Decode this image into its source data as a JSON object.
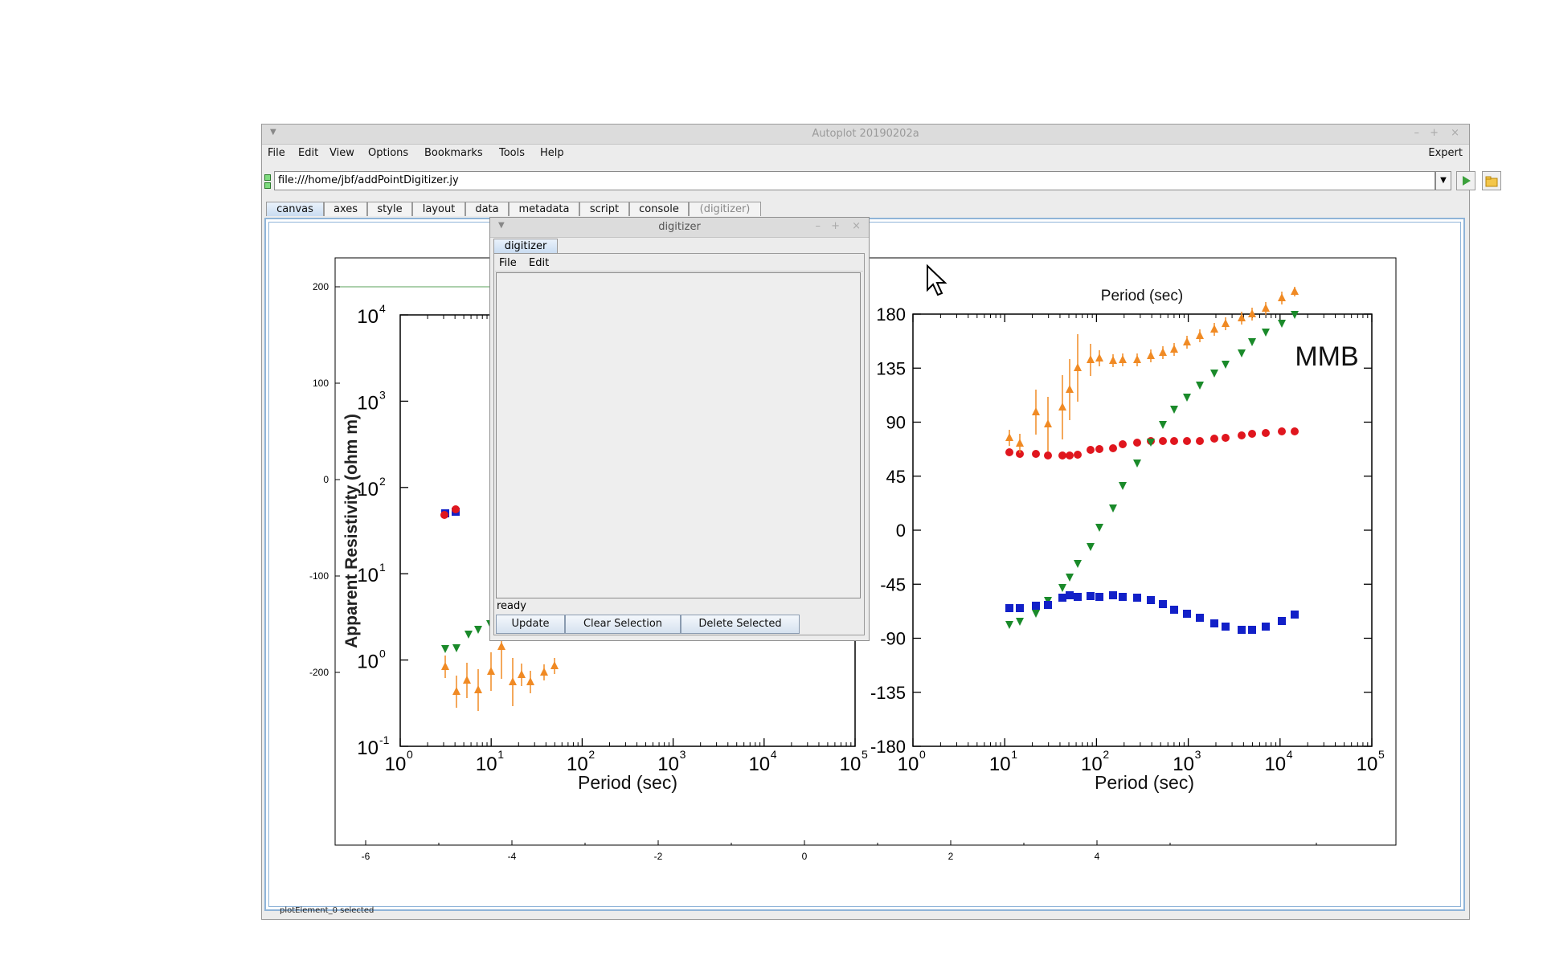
{
  "window": {
    "title": "Autoplot 20190202a",
    "minimize": "–",
    "maximize": "+",
    "close": "×"
  },
  "menubar": {
    "items": [
      "File",
      "Edit",
      "View",
      "Options",
      "Bookmarks",
      "Tools",
      "Help"
    ],
    "expert": "Expert"
  },
  "address": {
    "value": "file:///home/jbf/addPointDigitizer.jy",
    "dropdown_icon": "chevron-down-icon",
    "run_icon": "play-icon",
    "open_icon": "folder-icon"
  },
  "tabs": [
    {
      "label": "canvas",
      "selected": true
    },
    {
      "label": "axes"
    },
    {
      "label": "style"
    },
    {
      "label": "layout"
    },
    {
      "label": "data"
    },
    {
      "label": "metadata"
    },
    {
      "label": "script"
    },
    {
      "label": "console"
    },
    {
      "label": "(digitizer)",
      "disabled": true
    }
  ],
  "plot": {
    "y_ticks": [
      "200",
      "100",
      "0",
      "-100",
      "-200"
    ],
    "x_ticks": [
      "-6",
      "-4",
      "-2",
      "0",
      "2",
      "4"
    ],
    "left_panel": {
      "ylabel": "Apparent Resistivity (ohm m)",
      "xlabel": "Period (sec)",
      "y_tick_labels": [
        "10",
        "10",
        "10",
        "10",
        "10",
        "10"
      ],
      "y_tick_exps": [
        "4",
        "3",
        "2",
        "1",
        "0",
        "-1"
      ],
      "x_tick_labels": [
        "10",
        "10",
        "10",
        "10",
        "10",
        "10"
      ],
      "x_tick_exps": [
        "0",
        "1",
        "2",
        "3",
        "4",
        "5"
      ]
    },
    "right_panel": {
      "top_label": "Period (sec)",
      "station": "MMB",
      "xlabel": "Period (sec)",
      "y_tick_labels": [
        "180",
        "135",
        "90",
        "45",
        "0",
        "-45",
        "-90",
        "-135",
        "-180"
      ],
      "x_tick_labels": [
        "10",
        "10",
        "10",
        "10",
        "10",
        "10"
      ],
      "x_tick_exps": [
        "0",
        "1",
        "2",
        "3",
        "4",
        "5"
      ]
    },
    "colors": {
      "red": "#e0161e",
      "blue": "#1220c8",
      "green": "#1a8a2a",
      "orange": "#f08a24"
    }
  },
  "status": "plotElement_0 selected",
  "digitizer": {
    "title": "digitizer",
    "tab": "digitizer",
    "menu": [
      "File",
      "Edit"
    ],
    "status": "ready",
    "buttons": {
      "update": "Update",
      "clear": "Clear Selection",
      "delete": "Delete Selected"
    },
    "minimize": "–",
    "maximize": "+",
    "close": "×"
  }
}
